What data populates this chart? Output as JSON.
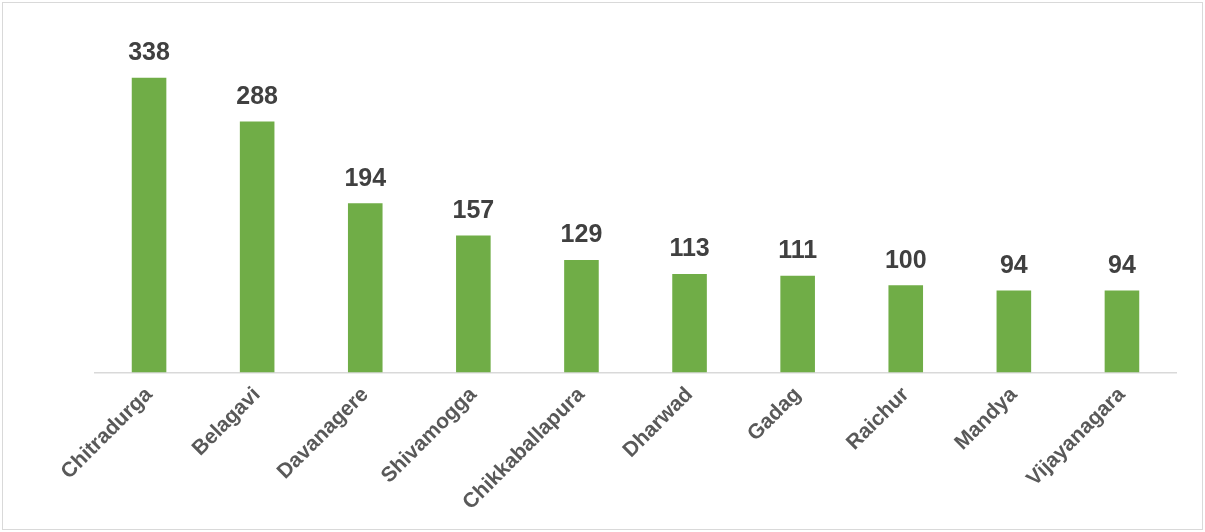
{
  "chart_data": {
    "type": "bar",
    "categories": [
      "Chitradurga",
      "Belagavi",
      "Davanagere",
      "Shivamogga",
      "Chikkaballapura",
      "Dharwad",
      "Gadag",
      "Raichur",
      "Mandya",
      "Vijayanagara"
    ],
    "values": [
      338,
      288,
      194,
      157,
      129,
      113,
      111,
      100,
      94,
      94
    ],
    "color": "#70ad47",
    "data_labels": true,
    "grid": false,
    "legend": false
  }
}
